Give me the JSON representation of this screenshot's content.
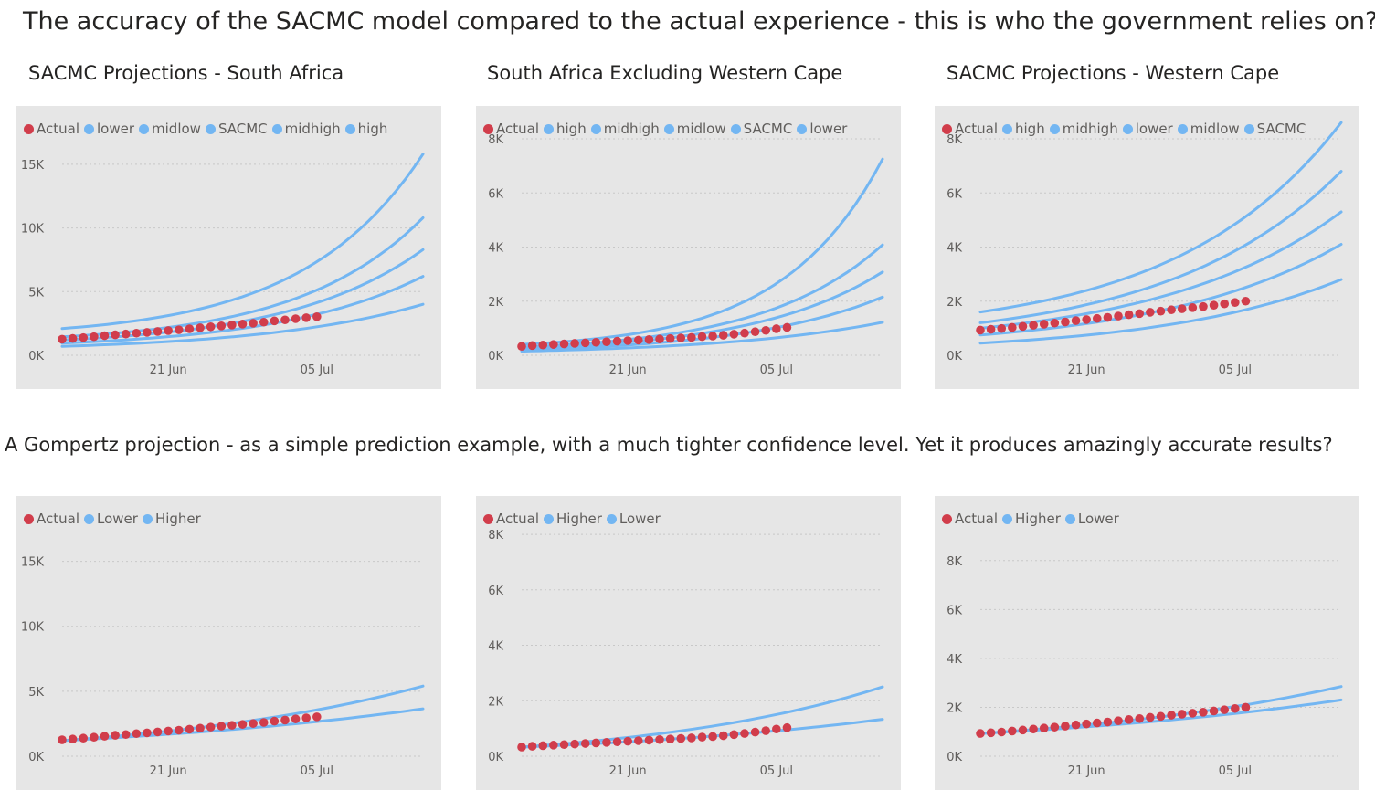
{
  "heading": "The accuracy of the SACMC model compared to the actual experience - this is who the government relies on?",
  "subheading": "A Gompertz projection - as a simple prediction example, with a much tighter confidence level. Yet it produces amazingly accurate results?",
  "colors": {
    "actual": "#d13d4b",
    "projection": "#73b6f2",
    "panel_bg": "#e6e6e6",
    "grid": "#c8c8c8"
  },
  "chart_data": [
    {
      "type": "line",
      "title": "SACMC Projections - South Africa",
      "legend": [
        "Actual",
        "lower",
        "midlow",
        "SACMC",
        "midhigh",
        "high"
      ],
      "x_start": "2020-06-11",
      "x_end": "2020-07-15",
      "xticks": [
        "21 Jun",
        "05 Jul"
      ],
      "yticks": [
        "0K",
        "5K",
        "10K",
        "15K"
      ],
      "ylim": [
        0,
        17000
      ],
      "actual": {
        "start": "2020-06-11",
        "values": [
          1260,
          1320,
          1390,
          1460,
          1540,
          1610,
          1670,
          1740,
          1800,
          1870,
          1940,
          2000,
          2080,
          2160,
          2240,
          2310,
          2380,
          2450,
          2520,
          2600,
          2700,
          2780,
          2870,
          2950,
          3030
        ]
      },
      "series": [
        {
          "name": "lower",
          "x": [
            "2020-06-11",
            "2020-07-15"
          ],
          "y": [
            700,
            4000
          ],
          "curvature": 2.2
        },
        {
          "name": "midlow",
          "x": [
            "2020-06-11",
            "2020-07-15"
          ],
          "y": [
            950,
            6200
          ],
          "curvature": 2.5
        },
        {
          "name": "SACMC",
          "x": [
            "2020-06-11",
            "2020-07-15"
          ],
          "y": [
            1200,
            8300
          ],
          "curvature": 2.7
        },
        {
          "name": "midhigh",
          "x": [
            "2020-06-11",
            "2020-07-15"
          ],
          "y": [
            1450,
            10800
          ],
          "curvature": 2.9
        },
        {
          "name": "high",
          "x": [
            "2020-06-11",
            "2020-07-15"
          ],
          "y": [
            2100,
            15800
          ],
          "curvature": 3.0
        }
      ]
    },
    {
      "type": "line",
      "title": "South Africa Excluding Western Cape",
      "legend": [
        "Actual",
        "high",
        "midhigh",
        "midlow",
        "SACMC",
        "lower"
      ],
      "x_start": "2020-06-11",
      "x_end": "2020-07-15",
      "xticks": [
        "21 Jun",
        "05 Jul"
      ],
      "yticks": [
        "0K",
        "2K",
        "4K",
        "6K",
        "8K"
      ],
      "ylim": [
        0,
        8000
      ],
      "actual": {
        "start": "2020-06-11",
        "values": [
          330,
          360,
          380,
          400,
          420,
          440,
          460,
          480,
          500,
          520,
          540,
          560,
          580,
          600,
          620,
          640,
          660,
          690,
          710,
          740,
          780,
          820,
          870,
          920,
          980,
          1030
        ]
      },
      "series": [
        {
          "name": "lower",
          "x": [
            "2020-06-11",
            "2020-07-15"
          ],
          "y": [
            150,
            1220
          ],
          "curvature": 2.2
        },
        {
          "name": "SACMC",
          "x": [
            "2020-06-11",
            "2020-07-15"
          ],
          "y": [
            200,
            2150
          ],
          "curvature": 2.6
        },
        {
          "name": "midlow",
          "x": [
            "2020-06-11",
            "2020-07-15"
          ],
          "y": [
            250,
            3080
          ],
          "curvature": 2.8
        },
        {
          "name": "midhigh",
          "x": [
            "2020-06-11",
            "2020-07-15"
          ],
          "y": [
            300,
            4080
          ],
          "curvature": 3.0
        },
        {
          "name": "high",
          "x": [
            "2020-06-11",
            "2020-07-15"
          ],
          "y": [
            400,
            7250
          ],
          "curvature": 3.6
        }
      ]
    },
    {
      "type": "line",
      "title": "SACMC Projections - Western Cape",
      "legend": [
        "Actual",
        "high",
        "midhigh",
        "lower",
        "midlow",
        "SACMC"
      ],
      "x_start": "2020-06-11",
      "x_end": "2020-07-15",
      "xticks": [
        "21 Jun",
        "05 Jul"
      ],
      "yticks": [
        "0K",
        "2K",
        "4K",
        "6K",
        "8K"
      ],
      "ylim": [
        0,
        8000
      ],
      "actual": {
        "start": "2020-06-11",
        "values": [
          930,
          960,
          990,
          1030,
          1070,
          1110,
          1150,
          1190,
          1230,
          1280,
          1320,
          1360,
          1400,
          1450,
          1500,
          1540,
          1590,
          1630,
          1680,
          1720,
          1760,
          1800,
          1850,
          1900,
          1950,
          2000
        ]
      },
      "series": [
        {
          "name": "lower",
          "x": [
            "2020-06-11",
            "2020-07-15"
          ],
          "y": [
            450,
            2800
          ],
          "curvature": 2.0
        },
        {
          "name": "midlow",
          "x": [
            "2020-06-11",
            "2020-07-15"
          ],
          "y": [
            750,
            4100
          ],
          "curvature": 2.0
        },
        {
          "name": "SACMC",
          "x": [
            "2020-06-11",
            "2020-07-15"
          ],
          "y": [
            1000,
            5300
          ],
          "curvature": 2.0
        },
        {
          "name": "midhigh",
          "x": [
            "2020-06-11",
            "2020-07-15"
          ],
          "y": [
            1200,
            6800
          ],
          "curvature": 2.1
        },
        {
          "name": "high",
          "x": [
            "2020-06-11",
            "2020-07-15"
          ],
          "y": [
            1600,
            8600
          ],
          "curvature": 2.2
        }
      ]
    },
    {
      "type": "line",
      "legend": [
        "Actual",
        "Lower",
        "Higher"
      ],
      "x_start": "2020-06-11",
      "x_end": "2020-07-15",
      "xticks": [
        "21 Jun",
        "05 Jul"
      ],
      "yticks": [
        "0K",
        "5K",
        "10K",
        "15K"
      ],
      "ylim": [
        0,
        17500
      ],
      "actual": {
        "start": "2020-06-11",
        "values": [
          1260,
          1320,
          1390,
          1460,
          1540,
          1610,
          1670,
          1740,
          1800,
          1870,
          1940,
          2000,
          2080,
          2160,
          2240,
          2310,
          2380,
          2450,
          2520,
          2600,
          2700,
          2780,
          2870,
          2950,
          3030
        ]
      },
      "series": [
        {
          "name": "Lower",
          "x": [
            "2020-06-11",
            "2020-07-15"
          ],
          "y": [
            1200,
            3650
          ],
          "curvature": 1.0
        },
        {
          "name": "Higher",
          "x": [
            "2020-06-11",
            "2020-07-15"
          ],
          "y": [
            1200,
            5400
          ],
          "curvature": 1.3
        }
      ]
    },
    {
      "type": "line",
      "legend": [
        "Actual",
        "Higher",
        "Lower"
      ],
      "x_start": "2020-06-11",
      "x_end": "2020-07-15",
      "xticks": [
        "21 Jun",
        "05 Jul"
      ],
      "yticks": [
        "0K",
        "2K",
        "4K",
        "6K",
        "8K"
      ],
      "ylim": [
        0,
        8200
      ],
      "actual": {
        "start": "2020-06-11",
        "values": [
          330,
          360,
          380,
          400,
          420,
          440,
          460,
          480,
          500,
          520,
          540,
          560,
          580,
          600,
          620,
          640,
          660,
          690,
          710,
          740,
          780,
          820,
          870,
          920,
          980,
          1030
        ]
      },
      "series": [
        {
          "name": "Lower",
          "x": [
            "2020-06-11",
            "2020-07-15"
          ],
          "y": [
            330,
            1330
          ],
          "curvature": 1.1
        },
        {
          "name": "Higher",
          "x": [
            "2020-06-11",
            "2020-07-15"
          ],
          "y": [
            330,
            2500
          ],
          "curvature": 1.5
        }
      ]
    },
    {
      "type": "line",
      "legend": [
        "Actual",
        "Higher",
        "Lower"
      ],
      "x_start": "2020-06-11",
      "x_end": "2020-07-15",
      "xticks": [
        "21 Jun",
        "05 Jul"
      ],
      "yticks": [
        "0K",
        "2K",
        "4K",
        "6K",
        "8K"
      ],
      "ylim": [
        0,
        9300
      ],
      "actual": {
        "start": "2020-06-11",
        "values": [
          930,
          960,
          990,
          1030,
          1070,
          1110,
          1150,
          1190,
          1230,
          1280,
          1320,
          1360,
          1400,
          1450,
          1500,
          1540,
          1590,
          1630,
          1680,
          1720,
          1760,
          1800,
          1850,
          1900,
          1950,
          2000
        ]
      },
      "series": [
        {
          "name": "Lower",
          "x": [
            "2020-06-11",
            "2020-07-15"
          ],
          "y": [
            930,
            2300
          ],
          "curvature": 1.0
        },
        {
          "name": "Higher",
          "x": [
            "2020-06-11",
            "2020-07-15"
          ],
          "y": [
            930,
            2850
          ],
          "curvature": 1.2
        }
      ]
    }
  ]
}
